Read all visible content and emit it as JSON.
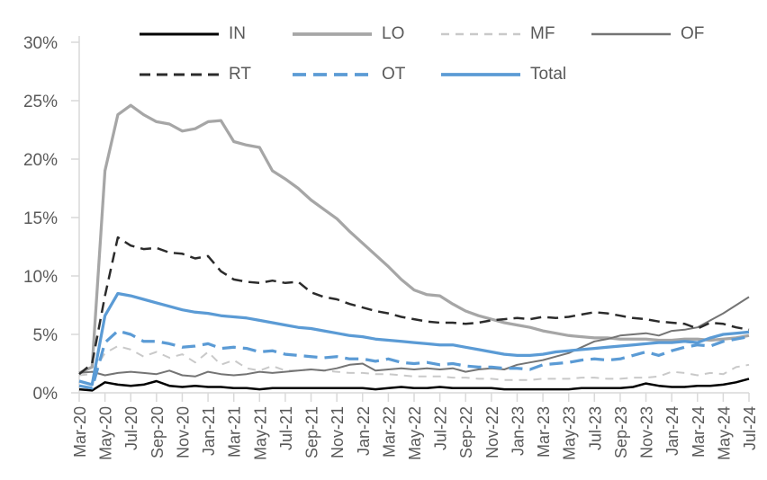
{
  "chart_data": {
    "type": "line",
    "title": "",
    "xlabel": "",
    "ylabel": "",
    "ylim": [
      0,
      30
    ],
    "y_tick_labels": [
      "0%",
      "5%",
      "10%",
      "15%",
      "20%",
      "25%",
      "30%"
    ],
    "grid": "off",
    "legend_position": "top-two-rows",
    "legend_rows": [
      [
        "IN",
        "LO",
        "MF",
        "OF"
      ],
      [
        "RT",
        "OT",
        "Total"
      ]
    ],
    "axis_color": "#d9d9d9",
    "text_color": "#595959",
    "x_categories": [
      "Mar-20",
      "Apr-20",
      "May-20",
      "Jun-20",
      "Jul-20",
      "Aug-20",
      "Sep-20",
      "Oct-20",
      "Nov-20",
      "Dec-20",
      "Jan-21",
      "Feb-21",
      "Mar-21",
      "Apr-21",
      "May-21",
      "Jun-21",
      "Jul-21",
      "Aug-21",
      "Sep-21",
      "Oct-21",
      "Nov-21",
      "Dec-21",
      "Jan-22",
      "Feb-22",
      "Mar-22",
      "Apr-22",
      "May-22",
      "Jun-22",
      "Jul-22",
      "Aug-22",
      "Sep-22",
      "Oct-22",
      "Nov-22",
      "Dec-22",
      "Jan-23",
      "Feb-23",
      "Mar-23",
      "Apr-23",
      "May-23",
      "Jun-23",
      "Jul-23",
      "Aug-23",
      "Sep-23",
      "Oct-23",
      "Nov-23",
      "Dec-23",
      "Jan-24",
      "Feb-24",
      "Mar-24",
      "Apr-24",
      "May-24",
      "Jun-24",
      "Jul-24"
    ],
    "x_tick_labels": [
      "Mar-20",
      "May-20",
      "Jul-20",
      "Sep-20",
      "Nov-20",
      "Jan-21",
      "Mar-21",
      "May-21",
      "Jul-21",
      "Sep-21",
      "Nov-21",
      "Jan-22",
      "Mar-22",
      "May-22",
      "Jul-22",
      "Sep-22",
      "Nov-22",
      "Jan-23",
      "Mar-23",
      "May-23",
      "Jul-23",
      "Sep-23",
      "Nov-23",
      "Jan-24",
      "Mar-24",
      "May-24",
      "Jul-24"
    ],
    "series": [
      {
        "name": "IN",
        "color": "#000000",
        "style": "solid",
        "values": [
          0.3,
          0.2,
          0.9,
          0.7,
          0.6,
          0.7,
          1.0,
          0.6,
          0.5,
          0.6,
          0.5,
          0.5,
          0.4,
          0.4,
          0.3,
          0.4,
          0.4,
          0.4,
          0.4,
          0.4,
          0.4,
          0.4,
          0.4,
          0.3,
          0.4,
          0.5,
          0.4,
          0.4,
          0.5,
          0.4,
          0.4,
          0.4,
          0.4,
          0.3,
          0.3,
          0.3,
          0.3,
          0.3,
          0.3,
          0.4,
          0.4,
          0.4,
          0.4,
          0.5,
          0.8,
          0.6,
          0.5,
          0.5,
          0.6,
          0.6,
          0.7,
          0.9,
          1.2
        ]
      },
      {
        "name": "LO",
        "color": "#a6a6a6",
        "style": "solid",
        "values": [
          1.7,
          2.2,
          19.0,
          23.8,
          24.6,
          23.8,
          23.2,
          23.0,
          22.4,
          22.6,
          23.2,
          23.3,
          21.5,
          21.2,
          21.0,
          19.0,
          18.3,
          17.5,
          16.5,
          15.7,
          14.9,
          13.8,
          12.8,
          11.8,
          10.8,
          9.7,
          8.8,
          8.4,
          8.3,
          7.6,
          7.0,
          6.6,
          6.3,
          6.0,
          5.8,
          5.6,
          5.3,
          5.1,
          4.9,
          4.8,
          4.7,
          4.7,
          4.6,
          4.6,
          4.6,
          4.5,
          4.5,
          4.6,
          4.6,
          4.5,
          4.6,
          4.7,
          4.9
        ]
      },
      {
        "name": "MF",
        "color": "#c9c9c9",
        "style": "dashed",
        "values": [
          1.5,
          1.6,
          3.4,
          4.0,
          3.7,
          3.1,
          3.5,
          3.0,
          3.3,
          2.6,
          3.5,
          2.4,
          2.8,
          2.1,
          1.9,
          2.3,
          1.9,
          1.9,
          2.0,
          1.9,
          1.8,
          1.7,
          1.7,
          1.6,
          1.6,
          1.5,
          1.4,
          1.4,
          1.4,
          1.3,
          1.3,
          1.2,
          1.2,
          1.1,
          1.1,
          1.1,
          1.2,
          1.2,
          1.2,
          1.3,
          1.3,
          1.2,
          1.2,
          1.3,
          1.3,
          1.4,
          1.8,
          1.7,
          1.5,
          1.7,
          1.6,
          2.2,
          2.4
        ]
      },
      {
        "name": "OF",
        "color": "#747474",
        "style": "solid",
        "values": [
          1.7,
          1.8,
          1.5,
          1.7,
          1.8,
          1.7,
          1.6,
          1.9,
          1.5,
          1.4,
          1.8,
          1.6,
          1.5,
          1.6,
          1.8,
          1.7,
          1.8,
          1.9,
          2.0,
          1.9,
          2.1,
          2.4,
          2.5,
          1.9,
          2.0,
          2.1,
          2.0,
          2.1,
          2.0,
          2.1,
          1.8,
          2.0,
          2.1,
          2.0,
          2.4,
          2.6,
          2.8,
          3.1,
          3.4,
          3.9,
          4.4,
          4.6,
          4.9,
          5.0,
          5.1,
          4.9,
          5.3,
          5.4,
          5.6,
          6.2,
          6.8,
          7.5,
          8.2
        ]
      },
      {
        "name": "RT",
        "color": "#2b2b2b",
        "style": "dashed",
        "values": [
          1.6,
          2.5,
          8.3,
          13.3,
          12.6,
          12.3,
          12.4,
          12.0,
          11.9,
          11.5,
          11.7,
          10.4,
          9.7,
          9.5,
          9.4,
          9.6,
          9.4,
          9.5,
          8.6,
          8.2,
          8.0,
          7.6,
          7.3,
          7.0,
          6.8,
          6.5,
          6.3,
          6.1,
          6.0,
          6.0,
          5.9,
          6.0,
          6.2,
          6.3,
          6.4,
          6.3,
          6.5,
          6.4,
          6.5,
          6.7,
          6.9,
          6.8,
          6.6,
          6.4,
          6.3,
          6.1,
          6.0,
          5.9,
          5.5,
          6.0,
          5.9,
          5.6,
          5.4
        ]
      },
      {
        "name": "OT",
        "color": "#5b9bd5",
        "style": "dashed",
        "values": [
          0.6,
          0.4,
          4.3,
          5.3,
          5.0,
          4.4,
          4.4,
          4.2,
          3.9,
          4.0,
          4.2,
          3.8,
          3.9,
          3.8,
          3.5,
          3.6,
          3.3,
          3.2,
          3.1,
          3.0,
          3.1,
          2.9,
          2.9,
          2.7,
          2.9,
          2.6,
          2.5,
          2.6,
          2.4,
          2.5,
          2.3,
          2.2,
          2.2,
          2.1,
          2.1,
          2.0,
          2.4,
          2.5,
          2.6,
          2.8,
          2.9,
          2.8,
          2.9,
          3.2,
          3.5,
          3.2,
          3.6,
          3.9,
          4.1,
          4.0,
          4.4,
          4.6,
          4.8
        ]
      },
      {
        "name": "Total",
        "color": "#5b9bd5",
        "style": "solid",
        "values": [
          1.0,
          0.7,
          6.6,
          8.5,
          8.3,
          8.0,
          7.7,
          7.4,
          7.1,
          6.9,
          6.8,
          6.6,
          6.5,
          6.4,
          6.2,
          6.0,
          5.8,
          5.6,
          5.5,
          5.3,
          5.1,
          4.9,
          4.8,
          4.6,
          4.5,
          4.4,
          4.3,
          4.2,
          4.1,
          4.1,
          3.9,
          3.7,
          3.5,
          3.3,
          3.2,
          3.2,
          3.3,
          3.5,
          3.6,
          3.7,
          3.8,
          3.9,
          4.0,
          4.1,
          4.2,
          4.3,
          4.3,
          4.4,
          4.3,
          4.7,
          5.0,
          5.1,
          5.2
        ]
      }
    ]
  }
}
